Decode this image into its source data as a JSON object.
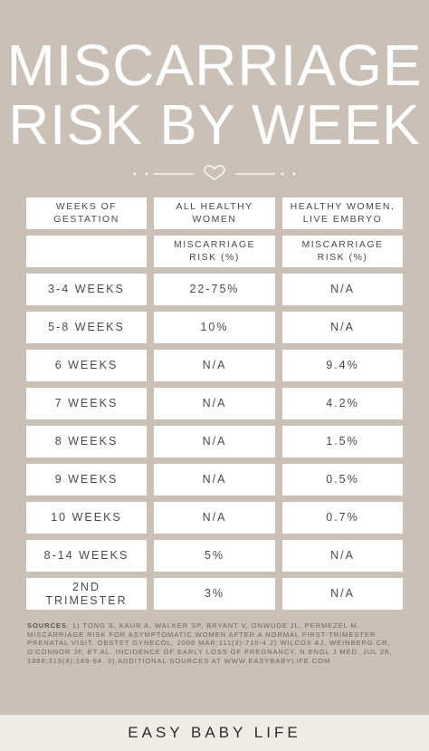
{
  "title": {
    "line1": "MISCARRIAGE",
    "line2": "RISK BY WEEK"
  },
  "table": {
    "headers": {
      "weeks": "WEEKS OF GESTATION",
      "col1": "ALL HEALTHY WOMEN",
      "col2": "HEALTHY WOMEN, LIVE EMBRYO"
    },
    "subheaders": {
      "weeks": "",
      "col1": "MISCARRIAGE RISK (%)",
      "col2": "MISCARRIAGE RISK (%)"
    },
    "rows": [
      {
        "weeks": "3-4 WEEKS",
        "all": "22-75%",
        "live": "N/A"
      },
      {
        "weeks": "5-8 WEEKS",
        "all": "10%",
        "live": "N/A"
      },
      {
        "weeks": "6 WEEKS",
        "all": "N/A",
        "live": "9.4%"
      },
      {
        "weeks": "7 WEEKS",
        "all": "N/A",
        "live": "4.2%"
      },
      {
        "weeks": "8 WEEKS",
        "all": "N/A",
        "live": "1.5%"
      },
      {
        "weeks": "9 WEEKS",
        "all": "N/A",
        "live": "0.5%"
      },
      {
        "weeks": "10 WEEKS",
        "all": "N/A",
        "live": "0.7%"
      },
      {
        "weeks": "8-14 WEEKS",
        "all": "5%",
        "live": "N/A"
      },
      {
        "weeks": "2ND TRIMESTER",
        "all": "3%",
        "live": "N/A"
      }
    ]
  },
  "sources": {
    "label": "SOURCES",
    "text": ": 1) TONG S, KAUR A, WALKER SP, BRYANT V, ONWUDE JL, PERMEZEL M. MISCARRIAGE RISK FOR ASYMPTOMATIC WOMEN AFTER A NORMAL FIRST-TRIMESTER PRENATAL VISIT. OBSTET GYNECOL. 2008 MAR;111(3):710-4 2) WILCOX AJ, WEINBERG CR, O'CONNOR JF, ET AL. INCIDENCE OF EARLY LOSS OF PREGNANCY. N ENGL J MED. JUL 28, 1988;319(4):189-94. 3) ADDITIONAL SOURCES AT WWW.EASYBABYLIFE.COM"
  },
  "footer": {
    "brand": "EASY BABY LIFE"
  },
  "icons": {
    "divider": "heart-icon"
  },
  "colors": {
    "background": "#cbc0b6",
    "cell": "#ffffff",
    "footer": "#f1ebe5",
    "text": "#4a4a4a"
  }
}
